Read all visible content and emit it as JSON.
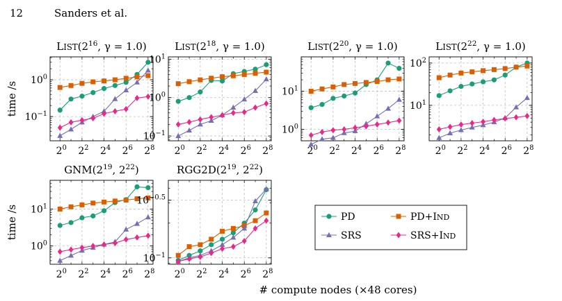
{
  "header": {
    "page_number": "12",
    "running_head": "Sanders et al."
  },
  "shared": {
    "ylabel": "time /s",
    "xlabel": "# compute nodes (×48 cores)",
    "x": [
      1,
      2,
      4,
      8,
      16,
      32,
      64,
      128,
      256
    ],
    "x_ticks": [
      [
        "2",
        "0"
      ],
      [
        "2",
        "2"
      ],
      [
        "2",
        "4"
      ],
      [
        "2",
        "6"
      ],
      [
        "2",
        "8"
      ]
    ],
    "colors": {
      "PD": "#1b9e77",
      "PD+Ind": "#d95f02",
      "SRS": "#7570b3",
      "SRS+Ind": "#e7298a"
    }
  },
  "legend": {
    "placement": "right-of-second-row",
    "entries": [
      {
        "key": "PD",
        "label": "PD",
        "marker": "circle"
      },
      {
        "key": "PD+Ind",
        "label": "PD+Ind",
        "marker": "square"
      },
      {
        "key": "SRS",
        "label": "SRS",
        "marker": "triangle"
      },
      {
        "key": "SRS+Ind",
        "label": "SRS+Ind",
        "marker": "diamond"
      }
    ]
  },
  "chart_data": [
    {
      "type": "line",
      "yscale": "log",
      "title": "List(2^16, γ = 1.0)",
      "title_parts": [
        "List(2",
        "16",
        ", γ = 1.0)"
      ],
      "ylim": [
        0.022,
        4.2
      ],
      "y_ticks": [
        {
          "value": 0.1,
          "base": "10",
          "exp": "−1"
        },
        {
          "value": 1,
          "base": "10",
          "exp": "0"
        }
      ],
      "series": [
        {
          "key": "PD",
          "values": [
            0.15,
            0.3,
            0.36,
            0.45,
            0.58,
            0.7,
            0.85,
            1.4,
            3.0
          ]
        },
        {
          "key": "PD+Ind",
          "values": [
            0.62,
            0.7,
            0.8,
            0.88,
            0.93,
            1.0,
            1.1,
            1.2,
            1.3
          ]
        },
        {
          "key": "SRS",
          "values": [
            0.03,
            0.045,
            0.07,
            0.1,
            0.14,
            0.3,
            0.52,
            0.85,
            1.8
          ]
        },
        {
          "key": "SRS+Ind",
          "values": [
            0.05,
            0.07,
            0.08,
            0.09,
            0.12,
            0.14,
            0.16,
            0.32,
            0.35
          ]
        }
      ]
    },
    {
      "type": "line",
      "yscale": "log",
      "title": "List(2^18, γ = 1.0)",
      "title_parts": [
        "List(2",
        "18",
        ", γ = 1.0)"
      ],
      "ylim": [
        0.075,
        11.5
      ],
      "y_ticks": [
        {
          "value": 0.1,
          "base": "10",
          "exp": "−1"
        },
        {
          "value": 1,
          "base": "10",
          "exp": "0"
        },
        {
          "value": 10,
          "base": "10",
          "exp": "1"
        }
      ],
      "series": [
        {
          "key": "PD",
          "values": [
            0.8,
            1.0,
            1.4,
            2.8,
            2.7,
            4.2,
            4.8,
            5.5,
            7.2
          ]
        },
        {
          "key": "PD+Ind",
          "values": [
            2.3,
            2.6,
            2.9,
            3.2,
            3.5,
            3.7,
            4.0,
            4.3,
            4.6
          ]
        },
        {
          "key": "SRS",
          "values": [
            0.1,
            0.14,
            0.2,
            0.25,
            0.35,
            0.55,
            0.9,
            1.5,
            3.0
          ]
        },
        {
          "key": "SRS+Ind",
          "values": [
            0.2,
            0.23,
            0.27,
            0.31,
            0.35,
            0.4,
            0.42,
            0.55,
            0.7
          ]
        }
      ]
    },
    {
      "type": "line",
      "yscale": "log",
      "title": "List(2^20, γ = 1.0)",
      "title_parts": [
        "List(2",
        "20",
        ", γ = 1.0)"
      ],
      "ylim": [
        0.5,
        80
      ],
      "y_ticks": [
        {
          "value": 1,
          "base": "10",
          "exp": "0"
        },
        {
          "value": 10,
          "base": "10",
          "exp": "1"
        }
      ],
      "series": [
        {
          "key": "PD",
          "values": [
            3.7,
            4.5,
            6.5,
            7.5,
            9.0,
            15.0,
            20.0,
            55.0,
            40.0
          ]
        },
        {
          "key": "PD+Ind",
          "values": [
            10.0,
            11.5,
            13.0,
            15.0,
            16.0,
            17.0,
            18.0,
            20.0,
            21.0
          ]
        },
        {
          "key": "SRS",
          "values": [
            0.4,
            0.55,
            0.6,
            0.8,
            0.9,
            1.4,
            2.2,
            3.5,
            6.0
          ]
        },
        {
          "key": "SRS+Ind",
          "values": [
            0.7,
            0.85,
            0.95,
            1.0,
            1.1,
            1.2,
            1.35,
            1.5,
            1.7
          ]
        }
      ]
    },
    {
      "type": "line",
      "yscale": "log",
      "title": "List(2^22, γ = 1.0)",
      "title_parts": [
        "List(2",
        "22",
        ", γ = 1.0)"
      ],
      "ylim": [
        1.45,
        140
      ],
      "y_ticks": [
        {
          "value": 10,
          "base": "10",
          "exp": "1"
        },
        {
          "value": 100,
          "base": "10",
          "exp": "2"
        }
      ],
      "series": [
        {
          "key": "PD",
          "values": [
            17.0,
            22.0,
            28.0,
            32.0,
            36.0,
            40.0,
            52.0,
            80.0,
            100.0
          ]
        },
        {
          "key": "PD+Ind",
          "values": [
            45.0,
            52.0,
            58.0,
            62.0,
            66.0,
            70.0,
            74.0,
            80.0,
            85.0
          ]
        },
        {
          "key": "SRS",
          "values": [
            1.7,
            2.2,
            2.6,
            3.0,
            3.4,
            4.0,
            5.0,
            9.0,
            15.0
          ]
        },
        {
          "key": "SRS+Ind",
          "values": [
            2.7,
            3.1,
            3.5,
            3.8,
            4.1,
            4.5,
            4.9,
            5.2,
            5.6
          ]
        }
      ]
    },
    {
      "type": "line",
      "yscale": "log",
      "title": "GNM(2^19, 2^22)",
      "title_parts": [
        "GNM(2",
        "19",
        ", 2",
        "22",
        ")"
      ],
      "ylim": [
        0.32,
        60
      ],
      "y_ticks": [
        {
          "value": 1,
          "base": "10",
          "exp": "0"
        },
        {
          "value": 10,
          "base": "10",
          "exp": "1"
        }
      ],
      "series": [
        {
          "key": "PD",
          "values": [
            3.6,
            4.3,
            5.8,
            6.5,
            9.0,
            15.0,
            18.0,
            40.0,
            38.0
          ]
        },
        {
          "key": "PD+Ind",
          "values": [
            10.0,
            11.5,
            13.0,
            14.5,
            15.5,
            16.5,
            17.5,
            19.0,
            20.0
          ]
        },
        {
          "key": "SRS",
          "values": [
            0.4,
            0.55,
            0.75,
            0.9,
            1.1,
            1.3,
            2.8,
            4.0,
            6.0
          ]
        },
        {
          "key": "SRS+Ind",
          "values": [
            0.7,
            0.8,
            0.9,
            1.0,
            1.1,
            1.2,
            1.5,
            1.7,
            1.9
          ]
        }
      ]
    },
    {
      "type": "line",
      "yscale": "log",
      "title": "RGG2D(2^19, 2^22)",
      "title_parts": [
        "RGG2D(2",
        "19",
        ", 2",
        "22",
        ")"
      ],
      "ylim": [
        0.088,
        0.47
      ],
      "y_ticks": [
        {
          "value": 0.1,
          "base": "10",
          "exp": "−1"
        },
        {
          "value": 0.3162,
          "base": "10",
          "exp": "−0.5"
        }
      ],
      "series": [
        {
          "key": "PD",
          "values": [
            0.095,
            0.105,
            0.115,
            0.13,
            0.145,
            0.165,
            0.2,
            0.26,
            0.39
          ]
        },
        {
          "key": "PD+Ind",
          "values": [
            0.105,
            0.125,
            0.13,
            0.145,
            0.17,
            0.18,
            0.19,
            0.21,
            0.245
          ]
        },
        {
          "key": "SRS",
          "values": [
            0.093,
            0.1,
            0.105,
            0.115,
            0.13,
            0.15,
            0.18,
            0.31,
            0.395
          ]
        },
        {
          "key": "SRS+Ind",
          "values": [
            0.093,
            0.098,
            0.102,
            0.11,
            0.12,
            0.125,
            0.14,
            0.18,
            0.21
          ]
        }
      ]
    }
  ]
}
